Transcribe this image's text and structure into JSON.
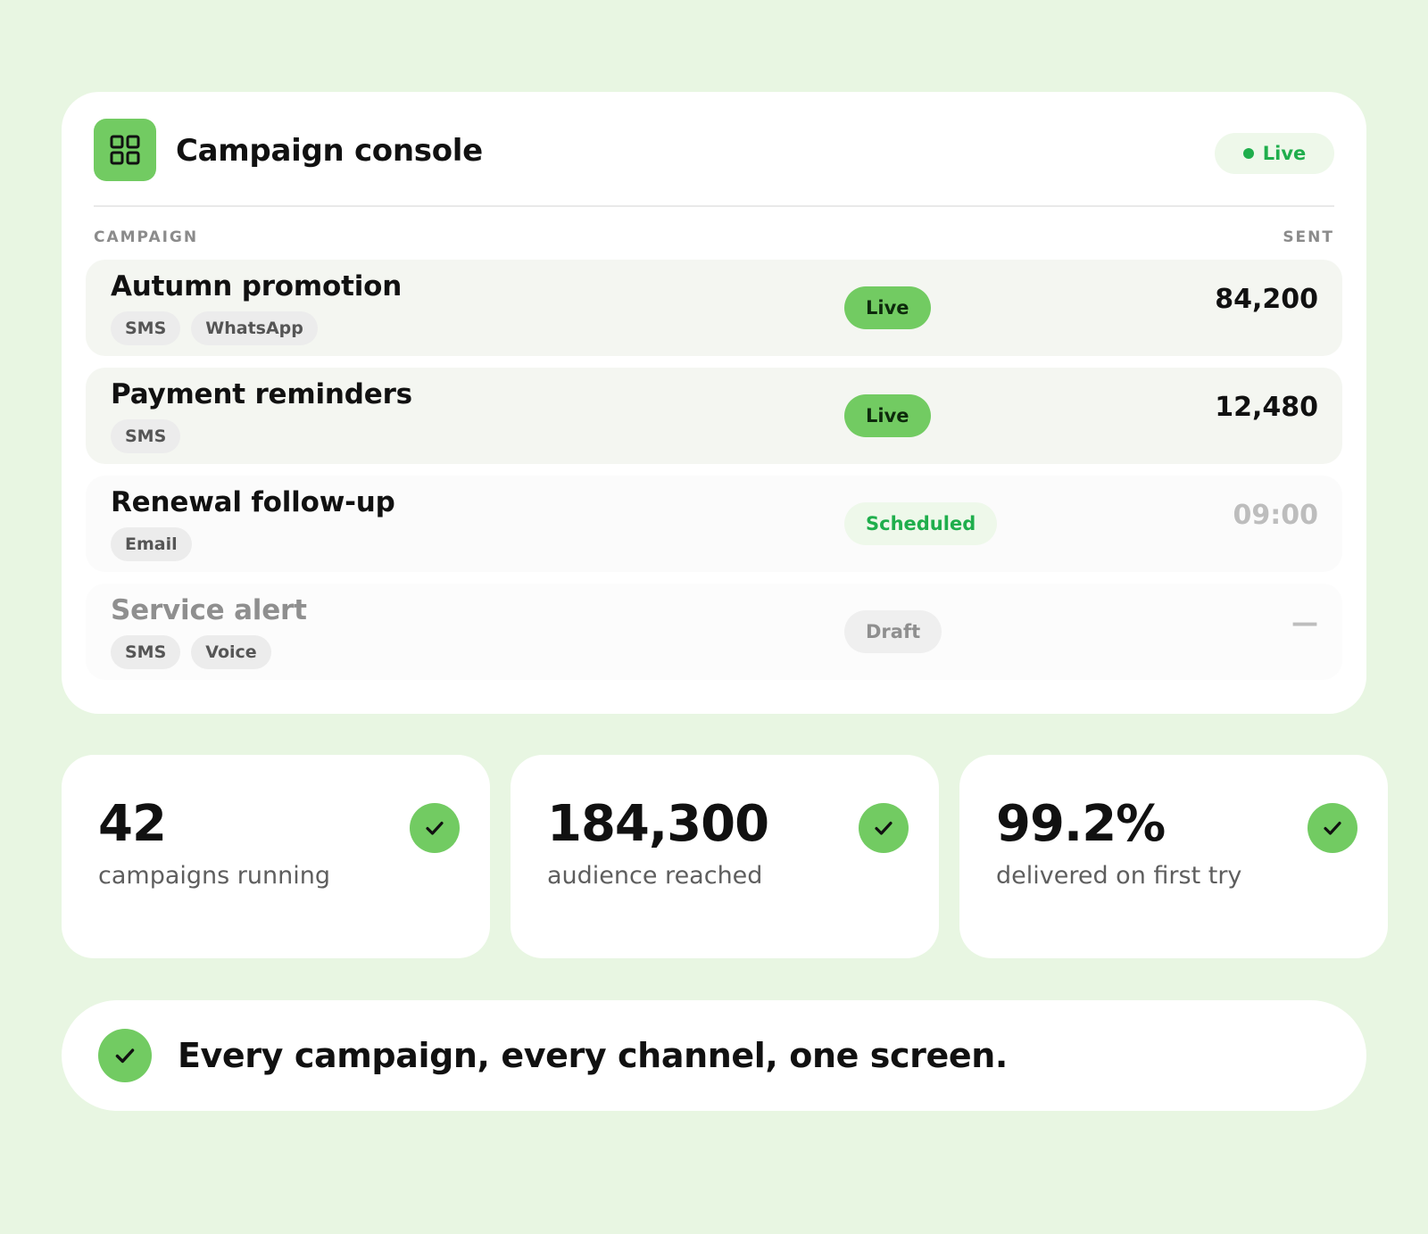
{
  "console": {
    "title": "Campaign console",
    "status_label": "Live",
    "icon": "grid-icon",
    "columns": {
      "campaign": "CAMPAIGN",
      "sent": "SENT"
    }
  },
  "campaigns": [
    {
      "name": "Autumn promotion",
      "channels": [
        "SMS",
        "WhatsApp"
      ],
      "status": "Live",
      "sent": "84,200"
    },
    {
      "name": "Payment reminders",
      "channels": [
        "SMS"
      ],
      "status": "Live",
      "sent": "12,480"
    },
    {
      "name": "Renewal follow-up",
      "channels": [
        "Email"
      ],
      "status": "Scheduled",
      "sent": "09:00"
    },
    {
      "name": "Service alert",
      "channels": [
        "SMS",
        "Voice"
      ],
      "status": "Draft",
      "sent": "—"
    }
  ],
  "stats": [
    {
      "value": "42",
      "label": "campaigns running",
      "icon": "check-icon"
    },
    {
      "value": "184,300",
      "label": "audience reached",
      "icon": "check-icon"
    },
    {
      "value": "99.2%",
      "label": "delivered on first try",
      "icon": "check-icon"
    }
  ],
  "banner": {
    "text": "Every campaign, every channel, one screen.",
    "icon": "check-icon"
  },
  "colors": {
    "background": "#e8f6e2",
    "accent": "#72cb62",
    "live_green": "#1fae4c",
    "text": "#111111"
  }
}
